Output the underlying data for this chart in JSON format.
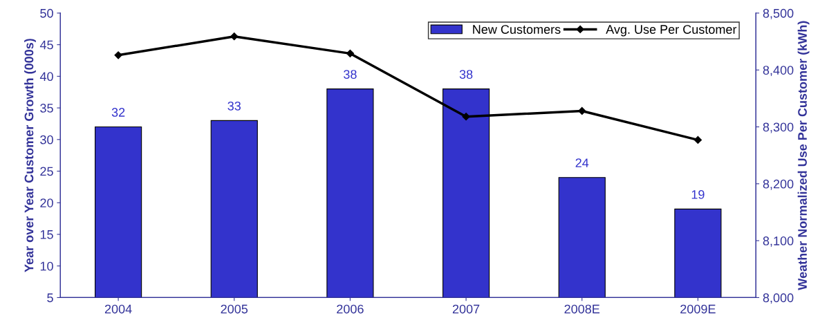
{
  "chart_data": {
    "type": "bar",
    "ylabel": "Year over Year Customer Growth (000s)",
    "y2label": "Weather Normalized Use Per Customer (kWh)",
    "categories": [
      "2004",
      "2005",
      "2006",
      "2007",
      "2008E",
      "2009E"
    ],
    "series": [
      {
        "name": "New Customers",
        "color": "#3333cc",
        "values": [
          32,
          33,
          38,
          38,
          24,
          19
        ],
        "data_labels": true
      },
      {
        "name": "Avg. Use Per Customer",
        "type": "line",
        "axis": "y2",
        "color": "#000000",
        "marker": "diamond",
        "line_style": "solid",
        "values": [
          8426,
          8459,
          8429,
          8318,
          8328,
          8277
        ]
      }
    ],
    "ylim": [
      5,
      50
    ],
    "yticks": [
      5,
      10,
      15,
      20,
      25,
      30,
      35,
      40,
      45,
      50
    ],
    "y2lim": [
      8000,
      8500
    ],
    "y2ticks": [
      {
        "value": 8000,
        "label": "8,000"
      },
      {
        "value": 8100,
        "label": "8,100"
      },
      {
        "value": 8200,
        "label": "8,200"
      },
      {
        "value": 8300,
        "label": "8,300"
      },
      {
        "value": 8400,
        "label": "8,400"
      },
      {
        "value": 8500,
        "label": "8,500"
      }
    ],
    "legend": "top right",
    "grid": false
  }
}
